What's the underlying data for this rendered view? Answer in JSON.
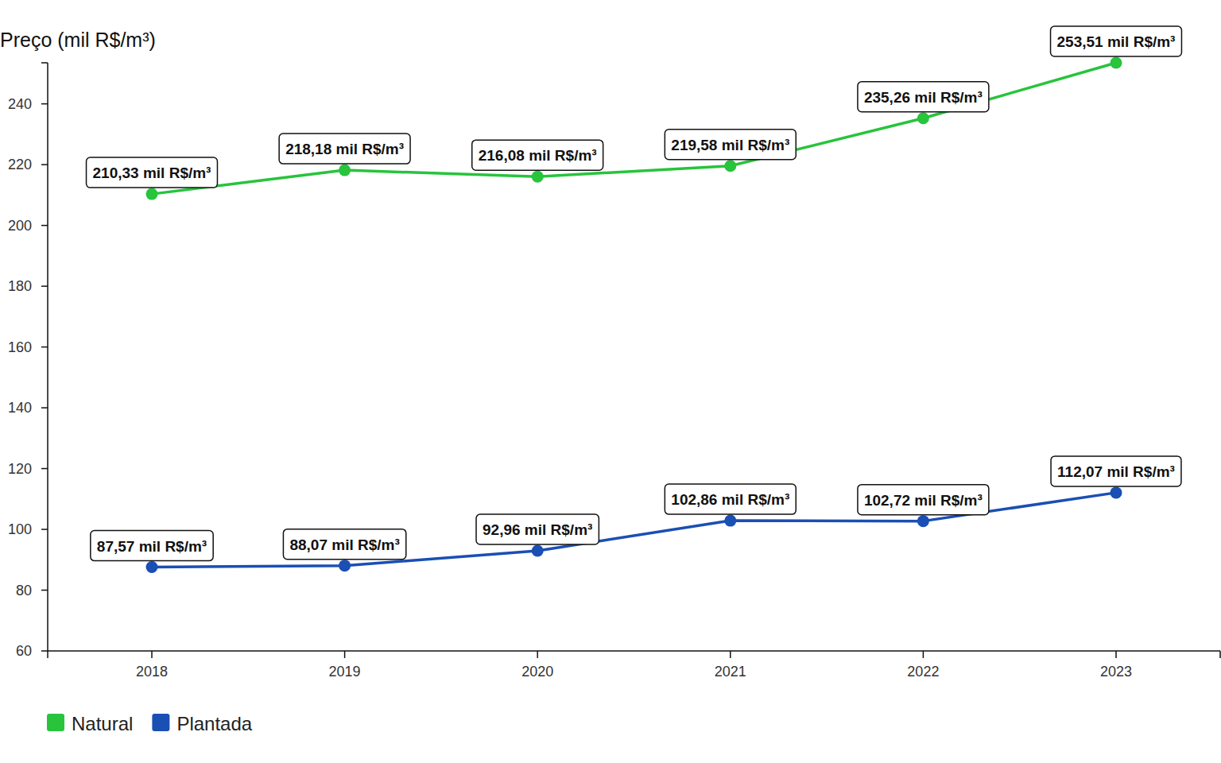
{
  "chart_data": {
    "type": "line",
    "y_label": "Preço (mil R$/m³)",
    "categories": [
      "2018",
      "2019",
      "2020",
      "2021",
      "2022",
      "2023"
    ],
    "series": [
      {
        "name": "Natural",
        "color": "#27c43c",
        "marker": "circle",
        "values": [
          210.33,
          218.18,
          216.08,
          219.58,
          235.26,
          253.51
        ],
        "value_labels": [
          "210,33 mil R$/m³",
          "218,18 mil R$/m³",
          "216,08 mil R$/m³",
          "219,58 mil R$/m³",
          "235,26 mil R$/m³",
          "253,51 mil R$/m³"
        ]
      },
      {
        "name": "Plantada",
        "color": "#1a4fb4",
        "marker": "circle",
        "values": [
          87.57,
          88.07,
          92.96,
          102.86,
          102.72,
          112.07
        ],
        "value_labels": [
          "87,57 mil R$/m³",
          "88,07 mil R$/m³",
          "92,96 mil R$/m³",
          "102,86 mil R$/m³",
          "102,72 mil R$/m³",
          "112,07 mil R$/m³"
        ]
      }
    ],
    "ylim": [
      60,
      253.51
    ],
    "yticks": [
      60,
      80,
      100,
      120,
      140,
      160,
      180,
      200,
      220,
      240
    ],
    "grid": false,
    "legend": "bottom-left",
    "data_labels": true
  }
}
